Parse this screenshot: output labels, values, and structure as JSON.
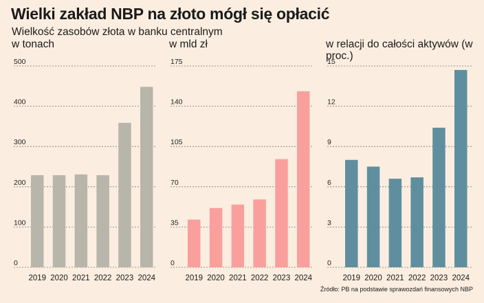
{
  "title": "Wielki zakład NBP na złoto mógł się opłacić",
  "subtitle": "Wielkość zasobów złota w banku centralnym",
  "source": "Źródło: PB na podstawie sprawozdań finansowych NBP",
  "chart_data": [
    {
      "type": "bar",
      "panel_label": "w tonach",
      "categories": [
        "2019",
        "2020",
        "2021",
        "2022",
        "2023",
        "2024"
      ],
      "values": [
        228.7,
        228.7,
        230.6,
        228.7,
        358.7,
        448.2
      ],
      "ylim": [
        0,
        500
      ],
      "yticks": [
        0,
        100,
        200,
        300,
        400,
        500
      ],
      "color": "#b8b5aa",
      "grid": true
    },
    {
      "type": "bar",
      "panel_label": "w mld zł",
      "categories": [
        "2019",
        "2020",
        "2021",
        "2022",
        "2023",
        "2024"
      ],
      "values": [
        41.5,
        51.5,
        54.5,
        59.0,
        94.0,
        153.0
      ],
      "ylim": [
        0,
        175
      ],
      "yticks": [
        0,
        35,
        70,
        105,
        140,
        175
      ],
      "color": "#f9a09c",
      "grid": true
    },
    {
      "type": "bar",
      "panel_label": "w relacji do całości aktywów (w proc.)",
      "categories": [
        "2019",
        "2020",
        "2021",
        "2022",
        "2023",
        "2024"
      ],
      "values": [
        8.0,
        7.5,
        6.6,
        6.7,
        10.4,
        14.7
      ],
      "ylim": [
        0,
        15
      ],
      "yticks": [
        0,
        3,
        6,
        9,
        12,
        15
      ],
      "color": "#5f8f9e",
      "grid": true
    }
  ]
}
